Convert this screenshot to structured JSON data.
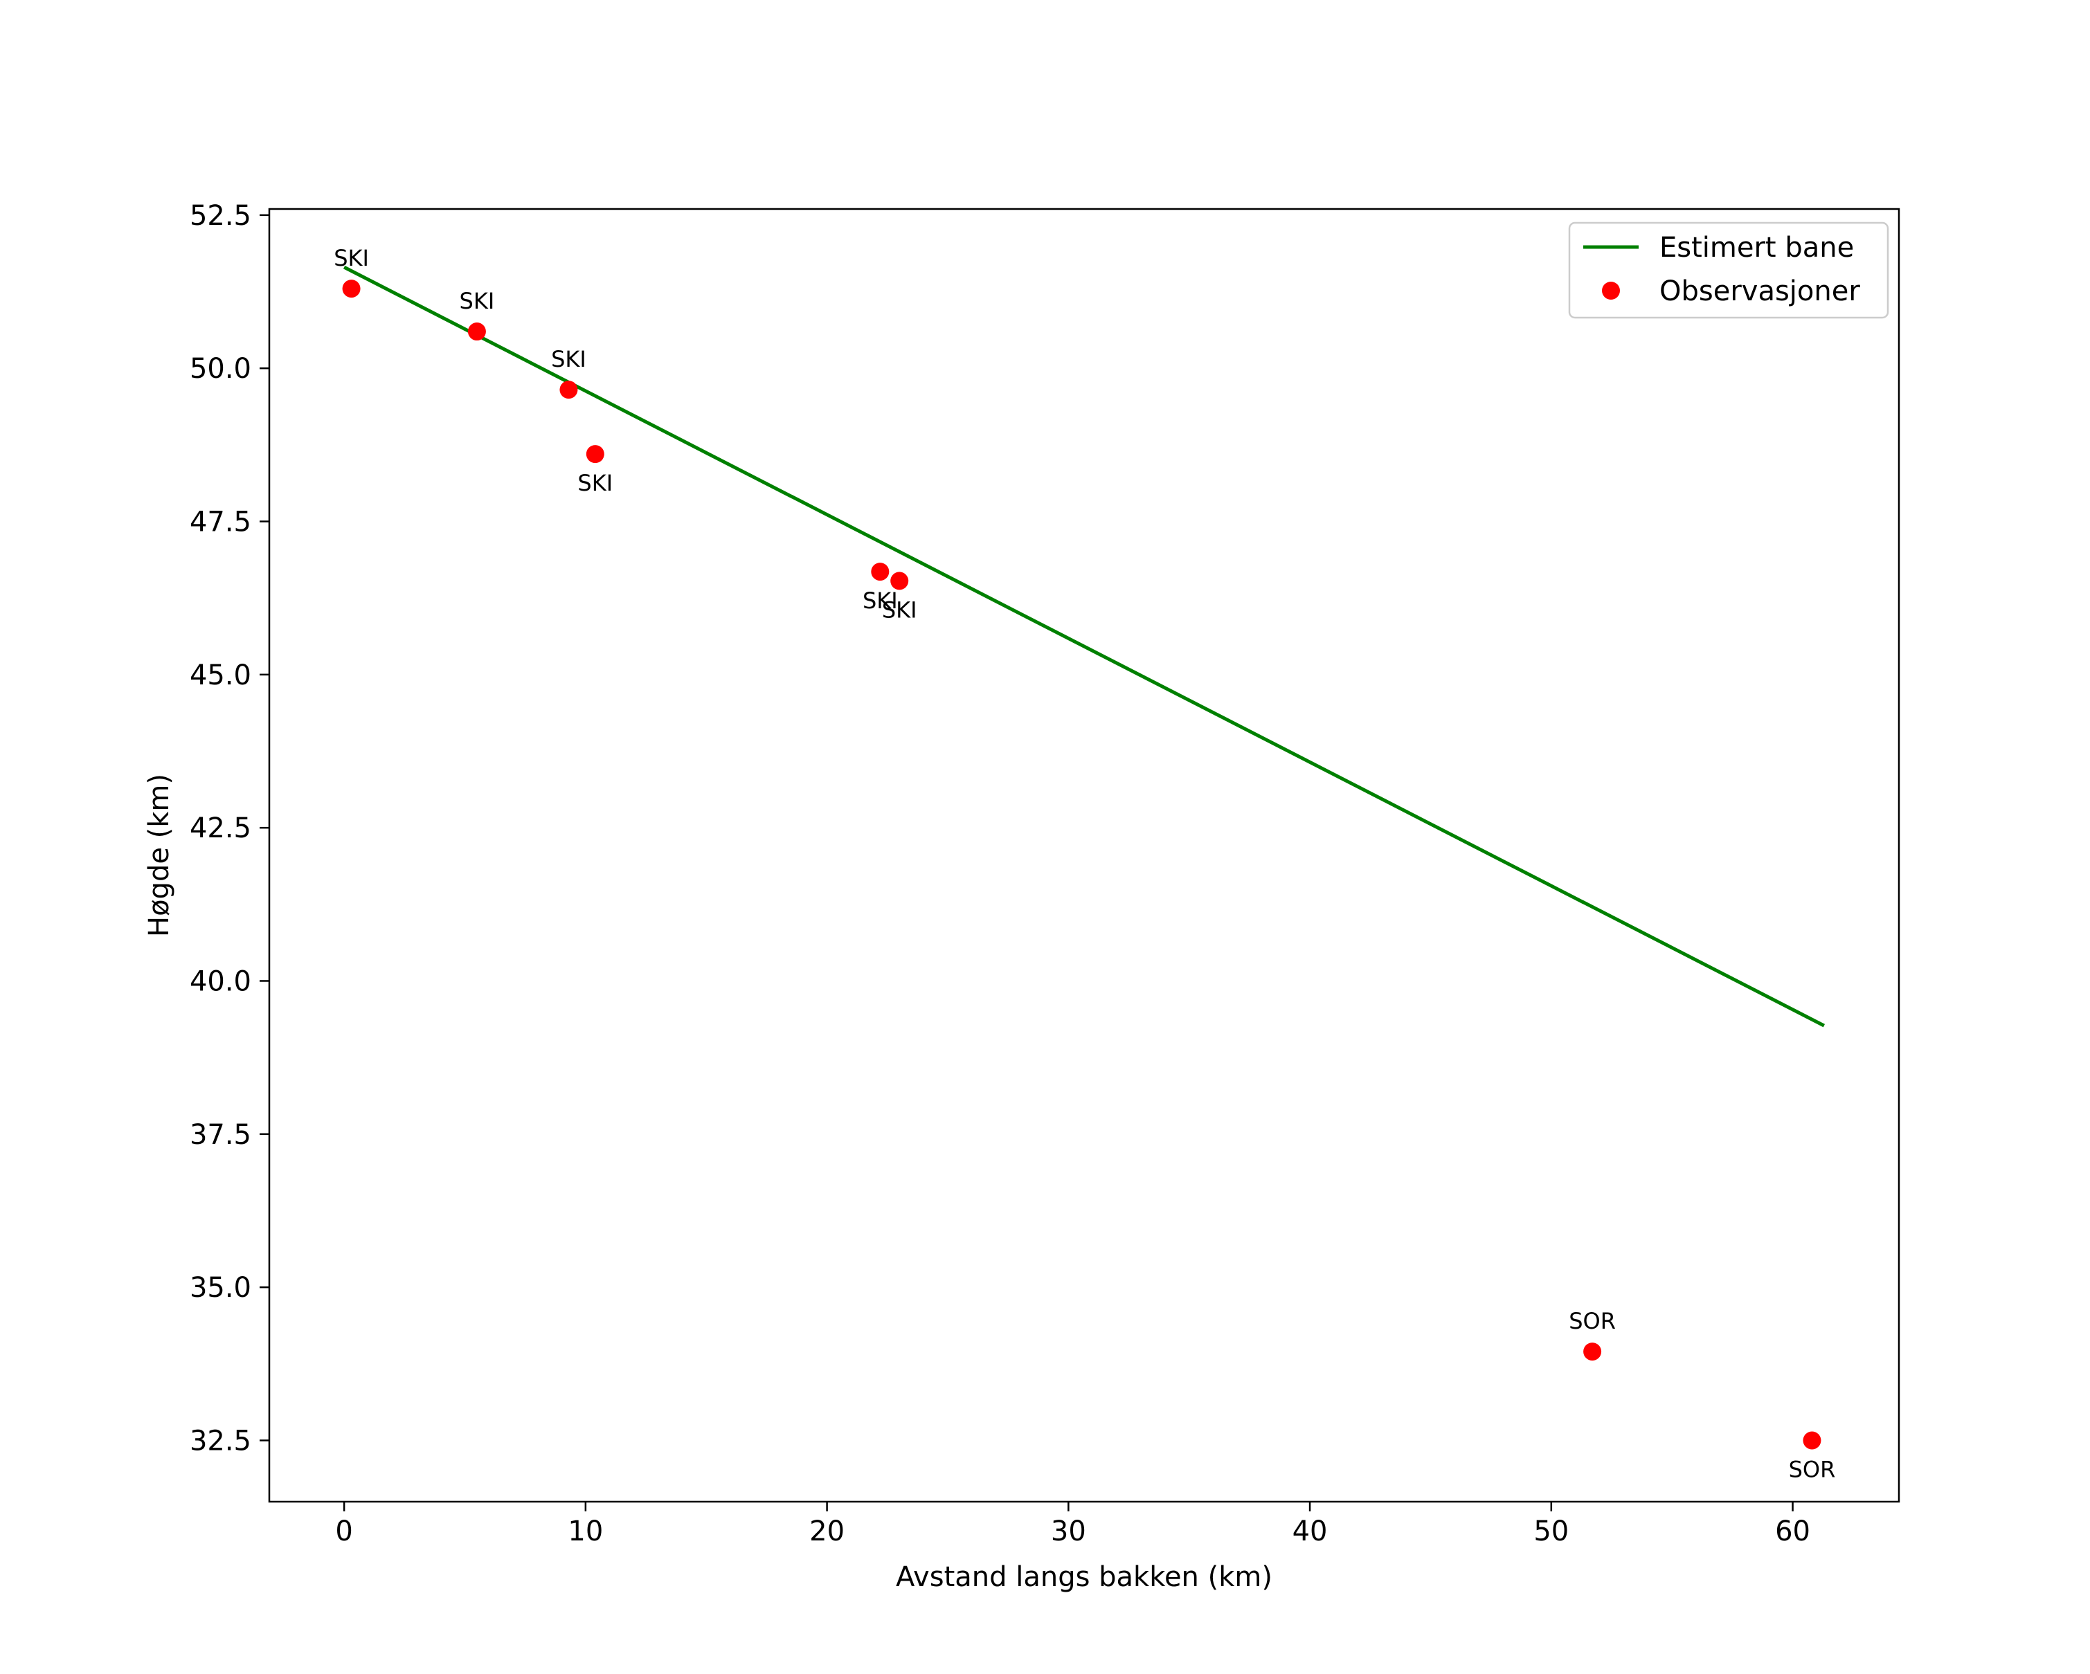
{
  "chart_data": {
    "type": "scatter",
    "title": "",
    "xlabel": "Avstand langs bakken (km)",
    "ylabel": "Høgde (km)",
    "xlim": [
      -3.1,
      64.4
    ],
    "ylim": [
      31.5,
      52.6
    ],
    "xticks": [
      0,
      10,
      20,
      30,
      40,
      50,
      60
    ],
    "xtick_labels": [
      "0",
      "10",
      "20",
      "30",
      "40",
      "50",
      "60"
    ],
    "yticks": [
      32.5,
      35.0,
      37.5,
      40.0,
      42.5,
      45.0,
      47.5,
      50.0,
      52.5
    ],
    "ytick_labels": [
      "32.5",
      "35.0",
      "37.5",
      "40.0",
      "42.5",
      "45.0",
      "47.5",
      "50.0",
      "52.5"
    ],
    "grid": false,
    "legend_position": "top-right",
    "series": [
      {
        "name": "Estimert bane",
        "kind": "line",
        "color": "#008000",
        "x": [
          0,
          61.3
        ],
        "y": [
          51.65,
          39.27
        ]
      },
      {
        "name": "Observasjoner",
        "kind": "scatter",
        "color": "#ff0000",
        "points": [
          {
            "x": 0.3,
            "y": 51.3,
            "label": "SKI",
            "label_side": "above"
          },
          {
            "x": 5.5,
            "y": 50.6,
            "label": "SKI",
            "label_side": "above"
          },
          {
            "x": 9.3,
            "y": 49.65,
            "label": "SKI",
            "label_side": "above"
          },
          {
            "x": 10.4,
            "y": 48.6,
            "label": "SKI",
            "label_side": "below"
          },
          {
            "x": 22.2,
            "y": 46.68,
            "label": "SKI",
            "label_side": "below"
          },
          {
            "x": 23.0,
            "y": 46.53,
            "label": "SKI",
            "label_side": "below"
          },
          {
            "x": 51.7,
            "y": 33.95,
            "label": "SOR",
            "label_side": "above"
          },
          {
            "x": 60.8,
            "y": 32.5,
            "label": "SOR",
            "label_side": "below"
          }
        ]
      }
    ]
  }
}
